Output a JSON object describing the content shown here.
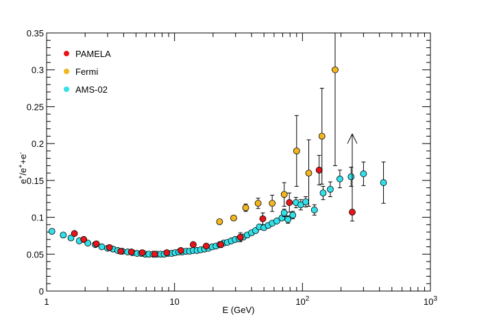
{
  "chart_data": {
    "type": "scatter",
    "title": "",
    "xlabel": "E (GeV)",
    "ylabel": {
      "base": "e",
      "sup1": "+",
      "mid": "/e",
      "sup2": "+",
      "plus": "+e",
      "sup3": "-"
    },
    "xscale": "log",
    "xlim": [
      1,
      1000
    ],
    "ylim": [
      0,
      0.35
    ],
    "x_ticks": [
      {
        "value": 1,
        "label": "1"
      },
      {
        "value": 10,
        "label": "10"
      },
      {
        "value": 100,
        "label": "10",
        "exp": "2"
      },
      {
        "value": 1000,
        "label": "10",
        "exp": "3"
      }
    ],
    "y_ticks": [
      {
        "value": 0,
        "label": "0"
      },
      {
        "value": 0.05,
        "label": "0.05"
      },
      {
        "value": 0.1,
        "label": "0.1"
      },
      {
        "value": 0.15,
        "label": "0.15"
      },
      {
        "value": 0.2,
        "label": "0.2"
      },
      {
        "value": 0.25,
        "label": "0.25"
      },
      {
        "value": 0.3,
        "label": "0.3"
      },
      {
        "value": 0.35,
        "label": "0.35"
      }
    ],
    "legend_position": "top-left",
    "series": [
      {
        "name": "AMS-02",
        "color": "#33e0e8",
        "points": [
          {
            "x": 1.1,
            "y": 0.081
          },
          {
            "x": 1.35,
            "y": 0.076
          },
          {
            "x": 1.55,
            "y": 0.072
          },
          {
            "x": 1.8,
            "y": 0.068
          },
          {
            "x": 2.1,
            "y": 0.065
          },
          {
            "x": 2.4,
            "y": 0.063
          },
          {
            "x": 2.7,
            "y": 0.06
          },
          {
            "x": 3.0,
            "y": 0.058
          },
          {
            "x": 3.3,
            "y": 0.057
          },
          {
            "x": 3.6,
            "y": 0.055
          },
          {
            "x": 3.9,
            "y": 0.054
          },
          {
            "x": 4.3,
            "y": 0.053
          },
          {
            "x": 4.7,
            "y": 0.052
          },
          {
            "x": 5.1,
            "y": 0.051
          },
          {
            "x": 5.5,
            "y": 0.051
          },
          {
            "x": 5.9,
            "y": 0.05
          },
          {
            "x": 6.3,
            "y": 0.05
          },
          {
            "x": 6.8,
            "y": 0.05
          },
          {
            "x": 7.3,
            "y": 0.05
          },
          {
            "x": 7.8,
            "y": 0.05
          },
          {
            "x": 8.3,
            "y": 0.05
          },
          {
            "x": 8.9,
            "y": 0.051
          },
          {
            "x": 9.5,
            "y": 0.051
          },
          {
            "x": 10.1,
            "y": 0.052
          },
          {
            "x": 10.8,
            "y": 0.053
          },
          {
            "x": 11.5,
            "y": 0.053
          },
          {
            "x": 12.3,
            "y": 0.054
          },
          {
            "x": 13.1,
            "y": 0.054
          },
          {
            "x": 14.0,
            "y": 0.055
          },
          {
            "x": 15.0,
            "y": 0.055
          },
          {
            "x": 16.0,
            "y": 0.056
          },
          {
            "x": 17.2,
            "y": 0.057
          },
          {
            "x": 18.4,
            "y": 0.058
          },
          {
            "x": 19.7,
            "y": 0.06
          },
          {
            "x": 21.1,
            "y": 0.061
          },
          {
            "x": 22.6,
            "y": 0.063
          },
          {
            "x": 24.2,
            "y": 0.065
          },
          {
            "x": 25.9,
            "y": 0.066
          },
          {
            "x": 27.8,
            "y": 0.068
          },
          {
            "x": 29.8,
            "y": 0.07
          },
          {
            "x": 32.0,
            "y": 0.071
          },
          {
            "x": 34.4,
            "y": 0.073
          },
          {
            "x": 37.0,
            "y": 0.076
          },
          {
            "x": 40.0,
            "y": 0.079
          },
          {
            "x": 43.0,
            "y": 0.082
          },
          {
            "x": 46.0,
            "y": 0.087
          },
          {
            "x": 50.0,
            "y": 0.086
          },
          {
            "x": 54.0,
            "y": 0.089
          },
          {
            "x": 58.0,
            "y": 0.092
          },
          {
            "x": 63.0,
            "y": 0.095
          },
          {
            "x": 69.0,
            "y": 0.099
          },
          {
            "x": 72.0,
            "y": 0.106,
            "err": 0.005
          },
          {
            "x": 77.0,
            "y": 0.097,
            "err": 0.005
          },
          {
            "x": 84.0,
            "y": 0.103,
            "err": 0.005
          },
          {
            "x": 89.0,
            "y": 0.12,
            "err": 0.007
          },
          {
            "x": 97.0,
            "y": 0.117,
            "err": 0.007
          },
          {
            "x": 106.0,
            "y": 0.121,
            "err": 0.007
          },
          {
            "x": 124.0,
            "y": 0.11,
            "err": 0.007
          },
          {
            "x": 145.0,
            "y": 0.133,
            "err": 0.009
          },
          {
            "x": 165.0,
            "y": 0.138,
            "err": 0.01
          },
          {
            "x": 196.0,
            "y": 0.152,
            "err": 0.012
          },
          {
            "x": 240.0,
            "y": 0.155,
            "err": 0.013
          },
          {
            "x": 300.0,
            "y": 0.159,
            "err": 0.016
          },
          {
            "x": 430.0,
            "y": 0.147,
            "err": 0.028
          }
        ]
      },
      {
        "name": "PAMELA",
        "color": "#e8141a",
        "points": [
          {
            "x": 1.65,
            "y": 0.078
          },
          {
            "x": 1.95,
            "y": 0.07
          },
          {
            "x": 2.45,
            "y": 0.064
          },
          {
            "x": 3.1,
            "y": 0.059
          },
          {
            "x": 3.8,
            "y": 0.054
          },
          {
            "x": 4.6,
            "y": 0.053
          },
          {
            "x": 5.6,
            "y": 0.052
          },
          {
            "x": 7.0,
            "y": 0.05
          },
          {
            "x": 8.7,
            "y": 0.052
          },
          {
            "x": 11.2,
            "y": 0.055
          },
          {
            "x": 14.0,
            "y": 0.063
          },
          {
            "x": 17.7,
            "y": 0.061
          },
          {
            "x": 23.0,
            "y": 0.063,
            "err": 0.004
          },
          {
            "x": 32.7,
            "y": 0.073,
            "err": 0.006
          },
          {
            "x": 49.0,
            "y": 0.098,
            "err": 0.008
          },
          {
            "x": 79.0,
            "y": 0.12,
            "err": 0.013
          },
          {
            "x": 135.0,
            "y": 0.164,
            "err": 0.02
          },
          {
            "x": 245.0,
            "y": 0.107,
            "errLow": 0.012,
            "upperArrowTo": 0.213
          }
        ]
      },
      {
        "name": "Fermi",
        "color": "#f2b61e",
        "points": [
          {
            "x": 22.5,
            "y": 0.094
          },
          {
            "x": 29.0,
            "y": 0.099
          },
          {
            "x": 36.0,
            "y": 0.113,
            "err": 0.005
          },
          {
            "x": 45.0,
            "y": 0.119,
            "err": 0.007
          },
          {
            "x": 58.0,
            "y": 0.119,
            "err": 0.011
          },
          {
            "x": 72.0,
            "y": 0.131,
            "err": 0.016
          },
          {
            "x": 90.0,
            "y": 0.19,
            "err": 0.048
          },
          {
            "x": 112.0,
            "y": 0.16,
            "err": 0.045
          },
          {
            "x": 142.0,
            "y": 0.21,
            "err": 0.065
          },
          {
            "x": 180.0,
            "y": 0.3,
            "err": 0.13
          }
        ]
      }
    ],
    "legend_order": [
      "PAMELA",
      "Fermi",
      "AMS-02"
    ]
  }
}
